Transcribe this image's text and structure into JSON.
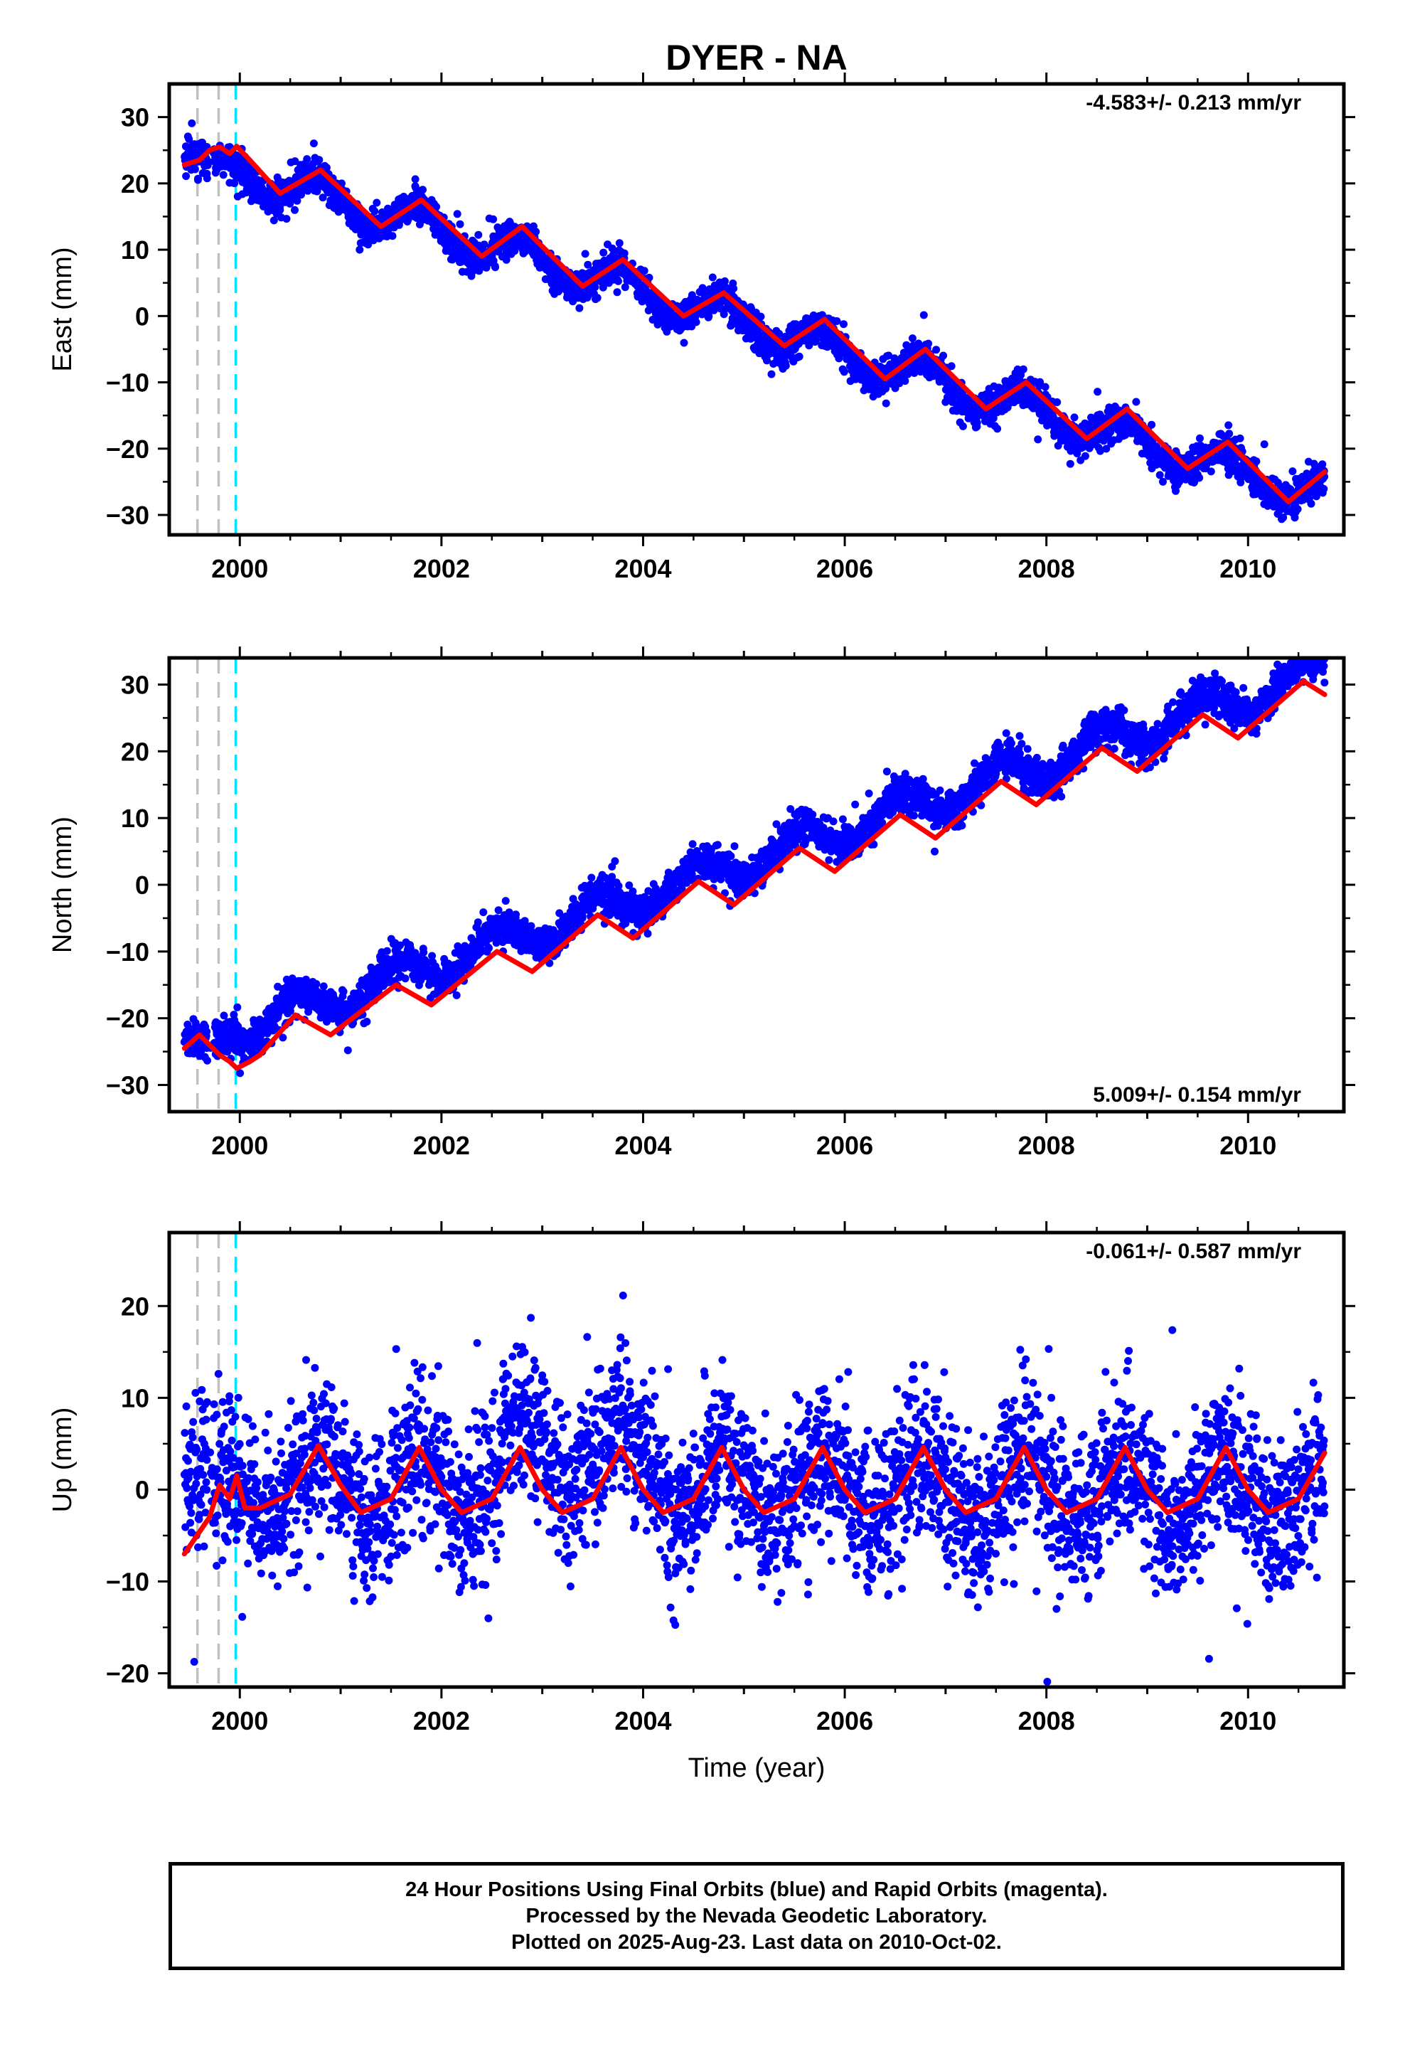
{
  "title": "DYER - NA",
  "xlabel": "Time (year)",
  "footer": {
    "line1": "24 Hour Positions Using Final Orbits (blue) and Rapid Orbits (magenta).",
    "line2": "Processed by the Nevada Geodetic Laboratory.",
    "line3": "Plotted on 2025-Aug-23. Last data on 2010-Oct-02."
  },
  "colors": {
    "points": "#0000ff",
    "model": "#ff0000",
    "vline_gray": "#c0c0c0",
    "vline_cyan": "#00e5ff"
  },
  "chart_data": [
    {
      "type": "scatter",
      "id": "east",
      "ylabel": "East (mm)",
      "rate": "-4.583+/- 0.213 mm/yr",
      "rate_position": "top-right",
      "xlim": [
        1999.3,
        2010.95
      ],
      "ylim": [
        -33,
        35
      ],
      "xticks": [
        2000,
        2002,
        2004,
        2006,
        2008,
        2010
      ],
      "yticks": [
        -30,
        -20,
        -10,
        0,
        10,
        20,
        30
      ],
      "vlines": [
        {
          "x": 1999.58,
          "color": "gray"
        },
        {
          "x": 1999.79,
          "color": "gray"
        },
        {
          "x": 1999.96,
          "color": "cyan"
        }
      ],
      "trend": {
        "x0": 1999.45,
        "x1": 2010.76,
        "y0": 24.5,
        "slope": -4.583,
        "amp": 2.6,
        "phase_year": 0.78,
        "seasonal_start": 2000.0,
        "noise": 1.3
      },
      "model": [
        [
          1999.45,
          22.8
        ],
        [
          1999.6,
          23.5
        ],
        [
          1999.7,
          25.0
        ],
        [
          1999.8,
          25.5
        ],
        [
          1999.9,
          24.5
        ],
        [
          1999.97,
          25.6
        ],
        [
          2000.1,
          23.5
        ],
        [
          2000.4,
          18.5
        ],
        [
          2000.8,
          22.0
        ],
        [
          2001.4,
          13.5
        ],
        [
          2001.8,
          17.5
        ],
        [
          2002.4,
          9.0
        ],
        [
          2002.8,
          13.5
        ],
        [
          2003.4,
          4.5
        ],
        [
          2003.8,
          8.5
        ],
        [
          2004.4,
          0.0
        ],
        [
          2004.8,
          3.5
        ],
        [
          2005.4,
          -4.5
        ],
        [
          2005.8,
          -0.5
        ],
        [
          2006.4,
          -9.5
        ],
        [
          2006.8,
          -5.0
        ],
        [
          2007.4,
          -14.0
        ],
        [
          2007.8,
          -10.0
        ],
        [
          2008.4,
          -18.5
        ],
        [
          2008.8,
          -14.0
        ],
        [
          2009.4,
          -23.0
        ],
        [
          2009.8,
          -19.0
        ],
        [
          2010.4,
          -28.0
        ],
        [
          2010.76,
          -23.5
        ]
      ]
    },
    {
      "type": "scatter",
      "id": "north",
      "ylabel": "North (mm)",
      "rate": "5.009+/- 0.154 mm/yr",
      "rate_position": "bottom-right",
      "xlim": [
        1999.3,
        2010.95
      ],
      "ylim": [
        -34,
        34
      ],
      "xticks": [
        2000,
        2002,
        2004,
        2006,
        2008,
        2010
      ],
      "yticks": [
        -30,
        -20,
        -10,
        0,
        10,
        20,
        30
      ],
      "vlines": [
        {
          "x": 1999.58,
          "color": "gray"
        },
        {
          "x": 1999.79,
          "color": "gray"
        },
        {
          "x": 1999.96,
          "color": "cyan"
        }
      ],
      "trend": {
        "x0": 1999.45,
        "x1": 2010.76,
        "y0": -24.5,
        "slope": 5.009,
        "amp": 2.5,
        "phase_year": 0.55,
        "seasonal_start": 2000.0,
        "noise": 1.4
      },
      "model": [
        [
          1999.45,
          -24.5
        ],
        [
          1999.6,
          -22.5
        ],
        [
          1999.8,
          -25.5
        ],
        [
          1999.9,
          -26.5
        ],
        [
          1999.97,
          -27.5
        ],
        [
          2000.1,
          -26.5
        ],
        [
          2000.2,
          -25.5
        ],
        [
          2000.55,
          -19.5
        ],
        [
          2000.9,
          -22.5
        ],
        [
          2001.55,
          -15.0
        ],
        [
          2001.9,
          -18.0
        ],
        [
          2002.55,
          -10.0
        ],
        [
          2002.9,
          -13.0
        ],
        [
          2003.55,
          -4.5
        ],
        [
          2003.9,
          -8.0
        ],
        [
          2004.55,
          0.5
        ],
        [
          2004.9,
          -3.0
        ],
        [
          2005.55,
          5.5
        ],
        [
          2005.9,
          2.0
        ],
        [
          2006.55,
          10.5
        ],
        [
          2006.9,
          7.0
        ],
        [
          2007.55,
          15.5
        ],
        [
          2007.9,
          12.0
        ],
        [
          2008.55,
          20.5
        ],
        [
          2008.9,
          17.0
        ],
        [
          2009.55,
          25.5
        ],
        [
          2009.9,
          22.0
        ],
        [
          2010.55,
          30.5
        ],
        [
          2010.76,
          28.5
        ]
      ]
    },
    {
      "type": "scatter",
      "id": "up",
      "ylabel": "Up (mm)",
      "rate": "-0.061+/- 0.587 mm/yr",
      "rate_position": "top-right",
      "xlim": [
        1999.3,
        2010.95
      ],
      "ylim": [
        -21.5,
        28
      ],
      "xticks": [
        2000,
        2002,
        2004,
        2006,
        2008,
        2010
      ],
      "yticks": [
        -20,
        -10,
        0,
        10,
        20
      ],
      "vlines": [
        {
          "x": 1999.58,
          "color": "gray"
        },
        {
          "x": 1999.79,
          "color": "gray"
        },
        {
          "x": 1999.96,
          "color": "cyan"
        }
      ],
      "trend": {
        "x0": 1999.45,
        "x1": 2010.76,
        "y0": 0.5,
        "slope": -0.061,
        "amp": 3.5,
        "phase_year": 0.78,
        "seasonal_start": 2000.0,
        "noise": 4.2
      },
      "model": [
        [
          1999.45,
          -7.0
        ],
        [
          1999.7,
          -3.0
        ],
        [
          1999.8,
          0.5
        ],
        [
          1999.9,
          -1.0
        ],
        [
          1999.97,
          1.5
        ],
        [
          2000.05,
          -2.0
        ],
        [
          2000.2,
          -2.0
        ],
        [
          2000.5,
          -0.5
        ],
        [
          2000.78,
          4.8
        ],
        [
          2001.0,
          0.5
        ],
        [
          2001.2,
          -2.5
        ],
        [
          2001.5,
          -1.0
        ],
        [
          2001.78,
          4.6
        ],
        [
          2002.0,
          0.0
        ],
        [
          2002.2,
          -2.5
        ],
        [
          2002.5,
          -1.0
        ],
        [
          2002.78,
          4.6
        ],
        [
          2003.0,
          0.0
        ],
        [
          2003.2,
          -2.5
        ],
        [
          2003.5,
          -1.0
        ],
        [
          2003.78,
          4.6
        ],
        [
          2004.0,
          0.0
        ],
        [
          2004.2,
          -2.5
        ],
        [
          2004.5,
          -1.0
        ],
        [
          2004.78,
          4.6
        ],
        [
          2005.0,
          0.0
        ],
        [
          2005.2,
          -2.5
        ],
        [
          2005.5,
          -1.0
        ],
        [
          2005.78,
          4.6
        ],
        [
          2006.0,
          0.0
        ],
        [
          2006.2,
          -2.5
        ],
        [
          2006.5,
          -1.0
        ],
        [
          2006.78,
          4.6
        ],
        [
          2007.0,
          0.0
        ],
        [
          2007.2,
          -2.5
        ],
        [
          2007.5,
          -1.0
        ],
        [
          2007.78,
          4.6
        ],
        [
          2008.0,
          0.0
        ],
        [
          2008.2,
          -2.5
        ],
        [
          2008.5,
          -1.0
        ],
        [
          2008.78,
          4.6
        ],
        [
          2009.0,
          0.0
        ],
        [
          2009.2,
          -2.5
        ],
        [
          2009.5,
          -1.0
        ],
        [
          2009.78,
          4.6
        ],
        [
          2010.0,
          0.0
        ],
        [
          2010.2,
          -2.5
        ],
        [
          2010.5,
          -1.0
        ],
        [
          2010.76,
          4.0
        ]
      ]
    }
  ]
}
